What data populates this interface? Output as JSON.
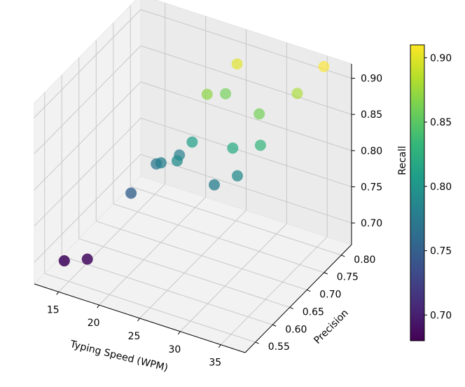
{
  "chart_data": {
    "type": "scatter",
    "projection": "3d",
    "title": "",
    "xlabel": "Typing Speed (WPM)",
    "ylabel": "Precision",
    "zlabel": "Recall",
    "xticks": [
      "15",
      "20",
      "25",
      "30",
      "35"
    ],
    "yticks": [
      "0.55",
      "0.60",
      "0.65",
      "0.70",
      "0.75",
      "0.80"
    ],
    "zticks": [
      "0.70",
      "0.75",
      "0.80",
      "0.85",
      "0.90"
    ],
    "xlim": [
      12,
      38
    ],
    "ylim": [
      0.52,
      0.83
    ],
    "zlim": [
      0.67,
      0.92
    ],
    "colormap": "viridis",
    "colorbar": {
      "label": "",
      "range": [
        0.68,
        0.91
      ],
      "ticks": [
        "0.70",
        "0.75",
        "0.80",
        "0.85",
        "0.90"
      ],
      "stops": [
        "#440154",
        "#482878",
        "#3e4989",
        "#31688e",
        "#26828e",
        "#1f9e89",
        "#35b779",
        "#6ece58",
        "#b5de2b",
        "#fde725"
      ]
    },
    "points": [
      {
        "x": 14,
        "y": 0.56,
        "z": 0.69
      },
      {
        "x": 16,
        "y": 0.58,
        "z": 0.69
      },
      {
        "x": 18,
        "y": 0.66,
        "z": 0.75
      },
      {
        "x": 20,
        "y": 0.7,
        "z": 0.78
      },
      {
        "x": 19,
        "y": 0.71,
        "z": 0.77
      },
      {
        "x": 21,
        "y": 0.73,
        "z": 0.78
      },
      {
        "x": 22,
        "y": 0.7,
        "z": 0.79
      },
      {
        "x": 23,
        "y": 0.72,
        "z": 0.81
      },
      {
        "x": 24,
        "y": 0.74,
        "z": 0.87
      },
      {
        "x": 25,
        "y": 0.77,
        "z": 0.86
      },
      {
        "x": 26,
        "y": 0.78,
        "z": 0.9
      },
      {
        "x": 27,
        "y": 0.69,
        "z": 0.78
      },
      {
        "x": 28,
        "y": 0.72,
        "z": 0.82
      },
      {
        "x": 29,
        "y": 0.71,
        "z": 0.79
      },
      {
        "x": 30,
        "y": 0.75,
        "z": 0.86
      },
      {
        "x": 31,
        "y": 0.73,
        "z": 0.83
      },
      {
        "x": 33,
        "y": 0.79,
        "z": 0.88
      },
      {
        "x": 35,
        "y": 0.82,
        "z": 0.91
      }
    ]
  }
}
